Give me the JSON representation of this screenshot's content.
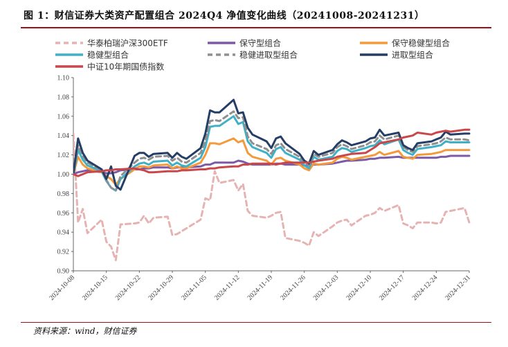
{
  "figure": {
    "title": "图 1：财信证券大类资产配置组合 2024Q4 净值变化曲线（20241008-20241231）",
    "source": "资料来源：wind，财信证券"
  },
  "chart_data": {
    "type": "line",
    "xlabel": "",
    "ylabel": "",
    "ylim": [
      0.9,
      1.1
    ],
    "yticks": [
      "0.90",
      "0.92",
      "0.94",
      "0.96",
      "0.98",
      "1.00",
      "1.02",
      "1.04",
      "1.06",
      "1.08",
      "1.10"
    ],
    "xlim": [
      "2024-10-08",
      "2024-12-31"
    ],
    "xticks": [
      "2024-10-08",
      "2024-10-15",
      "2024-10-22",
      "2024-10-29",
      "2024-11-05",
      "2024-11-12",
      "2024-11-19",
      "2024-11-26",
      "2024-12-03",
      "2024-12-10",
      "2024-12-17",
      "2024-12-24",
      "2024-12-31"
    ],
    "grid": false,
    "legend": "top",
    "x": [
      "2024-10-08",
      "2024-10-09",
      "2024-10-10",
      "2024-10-11",
      "2024-10-14",
      "2024-10-15",
      "2024-10-16",
      "2024-10-17",
      "2024-10-18",
      "2024-10-21",
      "2024-10-22",
      "2024-10-23",
      "2024-10-24",
      "2024-10-25",
      "2024-10-28",
      "2024-10-29",
      "2024-10-30",
      "2024-10-31",
      "2024-11-01",
      "2024-11-04",
      "2024-11-05",
      "2024-11-06",
      "2024-11-07",
      "2024-11-08",
      "2024-11-11",
      "2024-11-12",
      "2024-11-13",
      "2024-11-14",
      "2024-11-15",
      "2024-11-18",
      "2024-11-19",
      "2024-11-20",
      "2024-11-21",
      "2024-11-22",
      "2024-11-25",
      "2024-11-26",
      "2024-11-27",
      "2024-11-28",
      "2024-11-29",
      "2024-12-02",
      "2024-12-03",
      "2024-12-04",
      "2024-12-05",
      "2024-12-06",
      "2024-12-09",
      "2024-12-10",
      "2024-12-11",
      "2024-12-12",
      "2024-12-13",
      "2024-12-16",
      "2024-12-17",
      "2024-12-18",
      "2024-12-19",
      "2024-12-20",
      "2024-12-23",
      "2024-12-24",
      "2024-12-25",
      "2024-12-26",
      "2024-12-27",
      "2024-12-30",
      "2024-12-31"
    ],
    "series": [
      {
        "name": "华泰柏瑞沪深300ETF",
        "color": "#e6b3b3",
        "dash": "7,5",
        "width": 3,
        "values": [
          1.042,
          0.95,
          0.964,
          0.939,
          0.953,
          0.93,
          0.925,
          0.911,
          0.948,
          0.949,
          0.95,
          0.957,
          0.949,
          0.955,
          0.956,
          0.937,
          0.938,
          0.941,
          0.944,
          0.953,
          0.975,
          0.973,
          1.003,
          0.991,
          0.994,
          0.983,
          0.99,
          0.962,
          0.957,
          0.955,
          0.957,
          0.96,
          0.961,
          0.934,
          0.931,
          0.929,
          0.926,
          0.94,
          0.936,
          0.946,
          0.95,
          0.952,
          0.953,
          0.947,
          0.957,
          0.958,
          0.96,
          0.965,
          0.962,
          0.968,
          0.949,
          0.947,
          0.944,
          0.95,
          0.95,
          0.949,
          0.95,
          0.961,
          0.962,
          0.965,
          0.95
        ]
      },
      {
        "name": "保守型组合",
        "color": "#7d5aa6",
        "dash": "",
        "width": 3,
        "values": [
          1.0,
          1.002,
          1.003,
          1.004,
          1.002,
          1.001,
          1.001,
          1.002,
          1.004,
          1.005,
          1.005,
          1.006,
          1.006,
          1.007,
          1.007,
          1.006,
          1.007,
          1.007,
          1.007,
          1.008,
          1.01,
          1.01,
          1.012,
          1.012,
          1.012,
          1.014,
          1.013,
          1.011,
          1.01,
          1.01,
          1.01,
          1.011,
          1.011,
          1.01,
          1.01,
          1.009,
          1.009,
          1.01,
          1.01,
          1.011,
          1.012,
          1.013,
          1.014,
          1.014,
          1.015,
          1.016,
          1.016,
          1.017,
          1.017,
          1.018,
          1.017,
          1.017,
          1.017,
          1.017,
          1.017,
          1.017,
          1.018,
          1.018,
          1.019,
          1.019,
          1.019
        ]
      },
      {
        "name": "保守稳健型组合",
        "color": "#f39a3d",
        "dash": "",
        "width": 3,
        "values": [
          1.0,
          1.018,
          1.01,
          1.006,
          1.002,
          0.998,
          0.995,
          0.989,
          0.995,
          1.005,
          1.008,
          1.008,
          1.007,
          1.009,
          1.01,
          1.006,
          1.008,
          1.006,
          1.006,
          1.012,
          1.02,
          1.032,
          1.032,
          1.031,
          1.037,
          1.033,
          1.035,
          1.022,
          1.018,
          1.014,
          1.01,
          1.016,
          1.017,
          1.014,
          1.01,
          1.006,
          1.004,
          1.011,
          1.01,
          1.012,
          1.016,
          1.018,
          1.017,
          1.015,
          1.018,
          1.019,
          1.02,
          1.023,
          1.02,
          1.024,
          1.018,
          1.017,
          1.016,
          1.02,
          1.021,
          1.022,
          1.023,
          1.025,
          1.025,
          1.025,
          1.025
        ]
      },
      {
        "name": "稳健型组合",
        "color": "#3fb0c6",
        "dash": "",
        "width": 3,
        "values": [
          1.0,
          1.025,
          1.015,
          1.009,
          1.003,
          0.993,
          0.986,
          0.983,
          0.995,
          1.008,
          1.011,
          1.012,
          1.01,
          1.013,
          1.014,
          1.009,
          1.012,
          1.009,
          1.008,
          1.017,
          1.028,
          1.049,
          1.05,
          1.05,
          1.06,
          1.052,
          1.054,
          1.034,
          1.028,
          1.022,
          1.017,
          1.026,
          1.028,
          1.022,
          1.015,
          1.009,
          1.006,
          1.018,
          1.015,
          1.018,
          1.024,
          1.027,
          1.026,
          1.023,
          1.027,
          1.029,
          1.03,
          1.035,
          1.031,
          1.036,
          1.025,
          1.022,
          1.02,
          1.026,
          1.028,
          1.029,
          1.03,
          1.034,
          1.033,
          1.033,
          1.033
        ]
      },
      {
        "name": "稳健进取型组合",
        "color": "#8f8f8f",
        "dash": "7,5",
        "width": 3,
        "values": [
          1.0,
          1.03,
          1.019,
          1.012,
          1.004,
          0.994,
          0.986,
          0.983,
          0.998,
          1.012,
          1.016,
          1.017,
          1.015,
          1.018,
          1.019,
          1.014,
          1.017,
          1.013,
          1.012,
          1.022,
          1.034,
          1.055,
          1.056,
          1.055,
          1.065,
          1.058,
          1.059,
          1.039,
          1.032,
          1.026,
          1.021,
          1.03,
          1.032,
          1.026,
          1.018,
          1.012,
          1.009,
          1.021,
          1.018,
          1.022,
          1.028,
          1.031,
          1.029,
          1.026,
          1.03,
          1.033,
          1.034,
          1.04,
          1.036,
          1.04,
          1.028,
          1.025,
          1.023,
          1.029,
          1.031,
          1.032,
          1.034,
          1.038,
          1.036,
          1.036,
          1.035
        ]
      },
      {
        "name": "进取型组合",
        "color": "#243e66",
        "dash": "",
        "width": 3,
        "values": [
          1.0,
          1.037,
          1.022,
          1.014,
          1.005,
          0.995,
          1.008,
          0.988,
          0.984,
          1.019,
          1.022,
          1.022,
          1.018,
          1.021,
          1.022,
          1.017,
          1.022,
          1.018,
          1.016,
          1.027,
          1.042,
          1.066,
          1.064,
          1.064,
          1.077,
          1.063,
          1.064,
          1.048,
          1.041,
          1.034,
          1.027,
          1.037,
          1.039,
          1.032,
          1.021,
          1.014,
          1.011,
          1.024,
          1.02,
          1.025,
          1.031,
          1.035,
          1.033,
          1.03,
          1.034,
          1.037,
          1.038,
          1.046,
          1.04,
          1.043,
          1.03,
          1.027,
          1.025,
          1.032,
          1.034,
          1.036,
          1.038,
          1.044,
          1.041,
          1.042,
          1.042
        ]
      },
      {
        "name": "中证10年期国债指数",
        "color": "#c8474a",
        "dash": "",
        "width": 3,
        "values": [
          1.0,
          0.998,
          1.0,
          1.002,
          1.003,
          1.004,
          1.004,
          1.005,
          1.005,
          1.006,
          1.005,
          1.004,
          1.002,
          1.002,
          1.003,
          1.003,
          1.003,
          1.004,
          1.004,
          1.005,
          1.005,
          1.006,
          1.006,
          1.007,
          1.008,
          1.008,
          1.01,
          1.01,
          1.011,
          1.011,
          1.011,
          1.01,
          1.011,
          1.012,
          1.012,
          1.012,
          1.012,
          1.013,
          1.014,
          1.016,
          1.018,
          1.019,
          1.02,
          1.021,
          1.022,
          1.025,
          1.028,
          1.032,
          1.033,
          1.036,
          1.038,
          1.039,
          1.04,
          1.043,
          1.041,
          1.043,
          1.044,
          1.045,
          1.044,
          1.046,
          1.046
        ]
      }
    ]
  }
}
